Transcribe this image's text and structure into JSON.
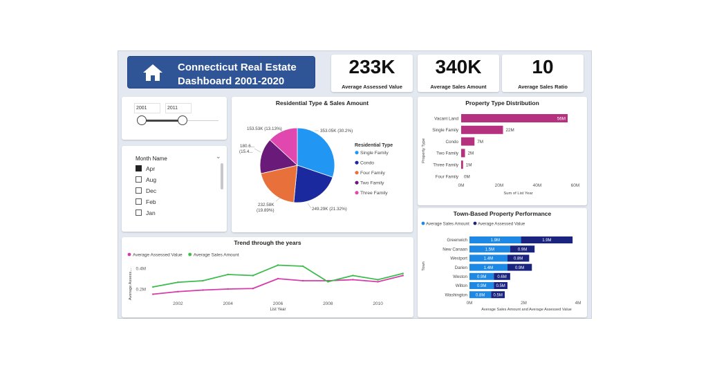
{
  "header": {
    "title_line1": "Connecticut Real Estate",
    "title_line2": "Dashboard 2001-2020",
    "icon": "home-icon"
  },
  "kpis": [
    {
      "value": "233K",
      "label": "Average Assessed Value"
    },
    {
      "value": "340K",
      "label": "Average Sales Amount"
    },
    {
      "value": "10",
      "label": "Average Sales Ratio"
    }
  ],
  "year_slicer": {
    "from": "2001",
    "to": "2011",
    "min": 2001,
    "max": 2020
  },
  "month_slicer": {
    "title": "Month Name",
    "items": [
      {
        "label": "Apr",
        "checked": true
      },
      {
        "label": "Aug",
        "checked": false
      },
      {
        "label": "Dec",
        "checked": false
      },
      {
        "label": "Feb",
        "checked": false
      },
      {
        "label": "Jan",
        "checked": false
      }
    ]
  },
  "colors": {
    "single_family": "#2196f3",
    "condo": "#1a2a9e",
    "four_family": "#e8703a",
    "two_family": "#6a1b7a",
    "three_family": "#e048b0",
    "bar": "#b5307e",
    "sales": "#1e88e5",
    "assessed": "#1a237e",
    "line_assessed": "#d63ba8",
    "line_sales": "#3dbb4c"
  },
  "chart_data": [
    {
      "type": "pie",
      "title": "Residential Type & Sales Amount",
      "legend_title": "Residential Type",
      "legend_position": "right",
      "slices": [
        {
          "name": "Single Family",
          "value": 353.05,
          "label": "353.05K (30.2%)",
          "percent": 30.2
        },
        {
          "name": "Condo",
          "value": 249.29,
          "label": "249.29K (21.32%)",
          "percent": 21.32
        },
        {
          "name": "Four Family",
          "value": 232.58,
          "label_line1": "232.58K",
          "label_line2": "(19.89%)",
          "percent": 19.89
        },
        {
          "name": "Two Family",
          "value": 180.6,
          "label_line1": "180.6...",
          "label_line2": "(15.4...",
          "percent": 15.45
        },
        {
          "name": "Three Family",
          "value": 153.53,
          "label": "153.53K (13.13%)",
          "percent": 13.13
        }
      ]
    },
    {
      "type": "bar",
      "orientation": "horizontal",
      "title": "Property Type Distribution",
      "xlabel": "Sum of List Year",
      "ylabel": "Property Type",
      "categories": [
        "Vacant Land",
        "Single Family",
        "Condo",
        "Two Family",
        "Three Family",
        "Four Family"
      ],
      "values": [
        56000000,
        22000000,
        7000000,
        2000000,
        1000000,
        0
      ],
      "data_labels": [
        "56M",
        "22M",
        "7M",
        "2M",
        "1M",
        "0M"
      ],
      "xlim": [
        0,
        60000000
      ],
      "x_ticks": [
        "0M",
        "20M",
        "40M",
        "60M"
      ]
    },
    {
      "type": "line",
      "title": "Trend through the years",
      "xlabel": "List Year",
      "ylabel": "Average Assess...",
      "x_ticks": [
        "2002",
        "2004",
        "2006",
        "2008",
        "2010"
      ],
      "y_ticks": [
        "0.2M",
        "0.4M"
      ],
      "xlim": [
        2000.8,
        2011.2
      ],
      "ylim": [
        0.1,
        0.5
      ],
      "legend_position": "top-left",
      "x": [
        2001,
        2002,
        2003,
        2004,
        2005,
        2006,
        2007,
        2008,
        2009,
        2010,
        2011
      ],
      "series": [
        {
          "name": "Average Assessed Value",
          "values": [
            0.15,
            0.175,
            0.19,
            0.2,
            0.205,
            0.3,
            0.28,
            0.28,
            0.29,
            0.27,
            0.33
          ]
        },
        {
          "name": "Average Sales Amount",
          "values": [
            0.22,
            0.265,
            0.28,
            0.34,
            0.33,
            0.43,
            0.42,
            0.27,
            0.33,
            0.29,
            0.35
          ]
        }
      ]
    },
    {
      "type": "bar",
      "orientation": "horizontal",
      "stacked": true,
      "title": "Town-Based Property Performance",
      "xlabel": "Average Sales Amount and Average Assessed Value",
      "ylabel": "Town",
      "categories": [
        "Greenwich",
        "New Canaan",
        "Westport",
        "Darien",
        "Weston",
        "Wilton",
        "Washington"
      ],
      "x_ticks": [
        "0M",
        "2M",
        "4M"
      ],
      "xlim": [
        0,
        4
      ],
      "legend_position": "top-left",
      "series": [
        {
          "name": "Average Sales Amount",
          "values": [
            1.9,
            1.5,
            1.4,
            1.4,
            0.9,
            0.9,
            0.8
          ],
          "labels": [
            "1.9M",
            "1.5M",
            "1.4M",
            "1.4M",
            "0.9M",
            "0.9M",
            "0.8M"
          ]
        },
        {
          "name": "Average Assessed Value",
          "values": [
            1.9,
            0.9,
            0.8,
            0.9,
            0.6,
            0.5,
            0.5
          ],
          "labels": [
            "1.9M",
            "0.9M",
            "0.8M",
            "0.9M",
            "0.6M",
            "0.5M",
            "0.5M"
          ]
        }
      ]
    }
  ]
}
